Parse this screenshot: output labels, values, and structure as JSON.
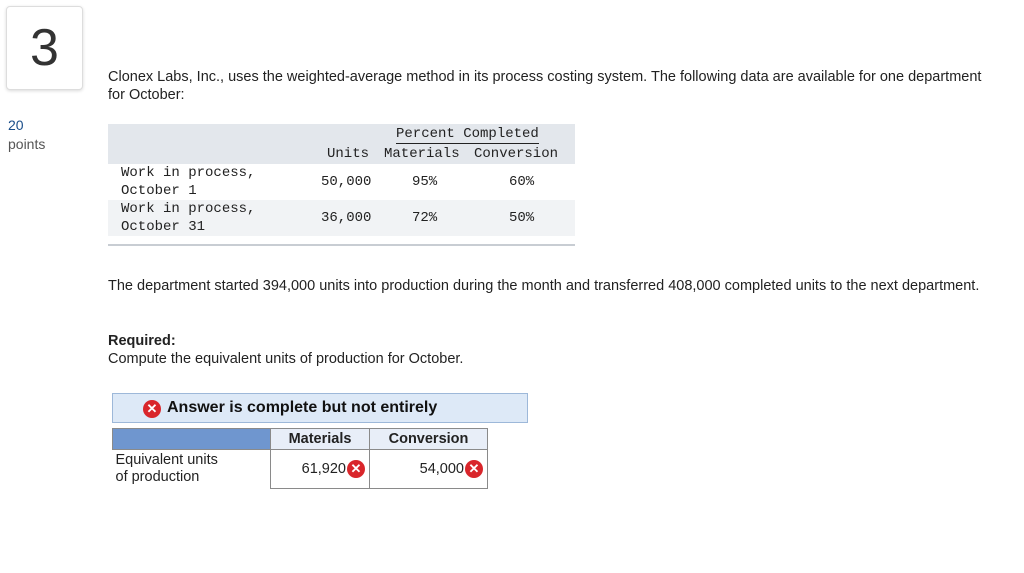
{
  "question": {
    "number": "3",
    "points_value": "20",
    "points_label": "points"
  },
  "intro": "Clonex Labs, Inc., uses the weighted-average method in its process costing system. The following data are available for one department for October:",
  "data_table": {
    "percent_completed_label": "Percent Completed",
    "col_units": "Units",
    "col_materials": "Materials",
    "col_conversion": "Conversion",
    "rows": [
      {
        "label_line1": "Work in process,",
        "label_line2": "October 1",
        "units": "50,000",
        "materials": "95%",
        "conversion": "60%"
      },
      {
        "label_line1": "Work in process,",
        "label_line2": "October 31",
        "units": "36,000",
        "materials": "72%",
        "conversion": "50%"
      }
    ]
  },
  "paragraph": "The department started 394,000 units into production during the month and transferred 408,000 completed units to the next department.",
  "required": {
    "heading": "Required:",
    "text": "Compute the equivalent units of production for October."
  },
  "result_banner": "Answer is complete but not entirely",
  "answer_table": {
    "col_materials": "Materials",
    "col_conversion": "Conversion",
    "row_label_line1": "Equivalent units",
    "row_label_line2": "of production",
    "materials_value": "61,920",
    "conversion_value": "54,000"
  },
  "colors": {
    "incorrect": "#d9262b",
    "banner_bg": "#dde9f7",
    "header_blue": "#6f96cf"
  },
  "icons": {
    "incorrect_mark": "x-circle-icon"
  }
}
